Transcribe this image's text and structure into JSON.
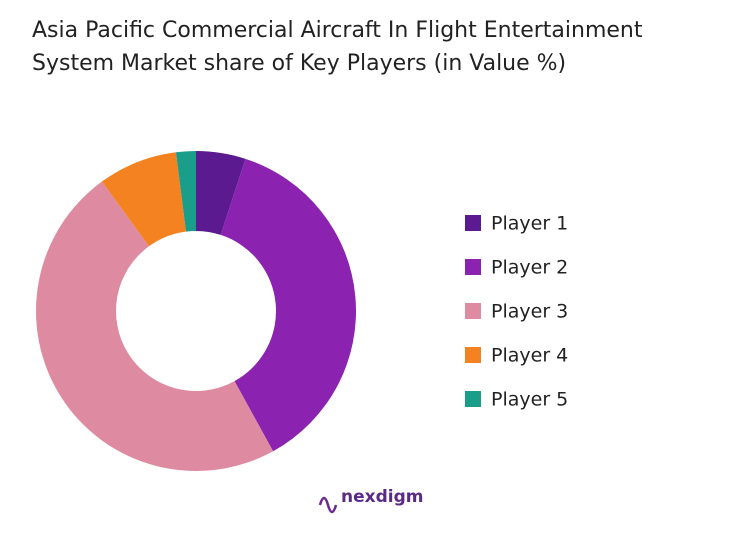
{
  "chart_data": {
    "type": "donut",
    "title": "Asia Pacific Commercial Aircraft In Flight Entertainment System Market share of Key Players (in Value %)",
    "categories": [
      "Player 1",
      "Player 2",
      "Player 3",
      "Player 4",
      "Player 5"
    ],
    "values": [
      5,
      37,
      48,
      8,
      2
    ],
    "colors": [
      "#5b1a8f",
      "#8b22b0",
      "#de8aa0",
      "#f58220",
      "#1a9e8a"
    ],
    "legend": "right"
  },
  "logo": "nexdigm"
}
